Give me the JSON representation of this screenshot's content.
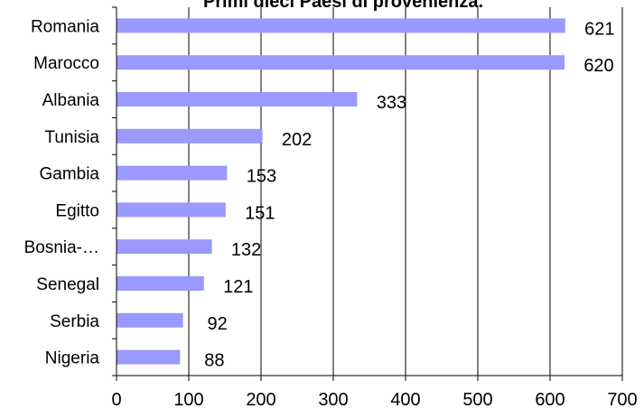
{
  "chart_data": {
    "type": "bar",
    "orientation": "horizontal",
    "title": "Primi dieci Paesi di provenienza.",
    "categories": [
      "Romania",
      "Marocco",
      "Albania",
      "Tunisia",
      "Gambia",
      "Egitto",
      "Bosnia-…",
      "Senegal",
      "Serbia",
      "Nigeria"
    ],
    "values": [
      621,
      620,
      333,
      202,
      153,
      151,
      132,
      121,
      92,
      88
    ],
    "data_labels": [
      "621",
      "620",
      "333",
      "202",
      "153",
      "151",
      "132",
      "121",
      "92",
      "88"
    ],
    "xlim": [
      0,
      700
    ],
    "x_ticks": [
      0,
      100,
      200,
      300,
      400,
      500,
      600,
      700
    ],
    "x_tick_labels": [
      "0",
      "100",
      "200",
      "300",
      "400",
      "500",
      "600",
      "700"
    ],
    "grid": "vertical",
    "legend": "none",
    "bar_color": "#9999ff",
    "grid_color": "#000000"
  }
}
